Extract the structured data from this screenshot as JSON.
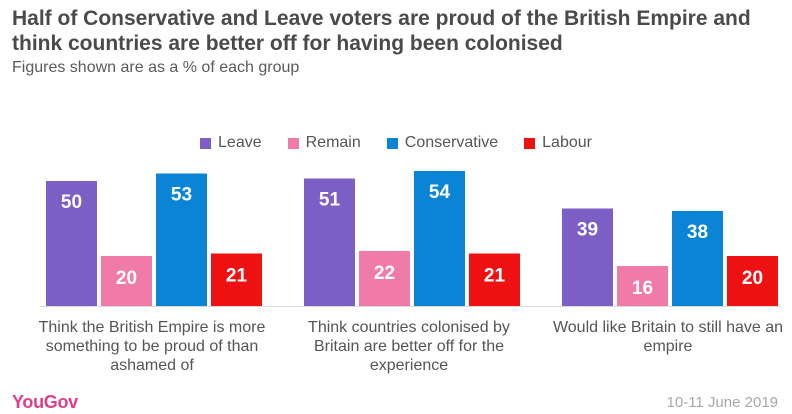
{
  "title": "Half of Conservative and Leave voters are proud of the British Empire and think countries are better off for having been colonised",
  "subtitle": "Figures shown are as a % of each group",
  "date": "10-11 June 2019",
  "logo": "YouGov",
  "colors": {
    "Leave": "#7b5fc4",
    "Remain": "#f07aa8",
    "Conservative": "#0a85d6",
    "Labour": "#ee1111"
  },
  "chart_data": {
    "type": "bar",
    "title": "Half of Conservative and Leave voters are proud of the British Empire and think countries are better off for having been colonised",
    "subtitle": "Figures shown are as a % of each group",
    "categories": [
      "Think the British Empire is more something to be proud of than ashamed of",
      "Think countries colonised by Britain are better off for the experience",
      "Would like Britain to still have an empire"
    ],
    "series": [
      {
        "name": "Leave",
        "values": [
          50,
          51,
          39
        ]
      },
      {
        "name": "Remain",
        "values": [
          20,
          22,
          16
        ]
      },
      {
        "name": "Conservative",
        "values": [
          53,
          54,
          38
        ]
      },
      {
        "name": "Labour",
        "values": [
          21,
          21,
          20
        ]
      }
    ],
    "ylim": [
      0,
      60
    ],
    "grid": false,
    "legend_position": "top-center"
  }
}
